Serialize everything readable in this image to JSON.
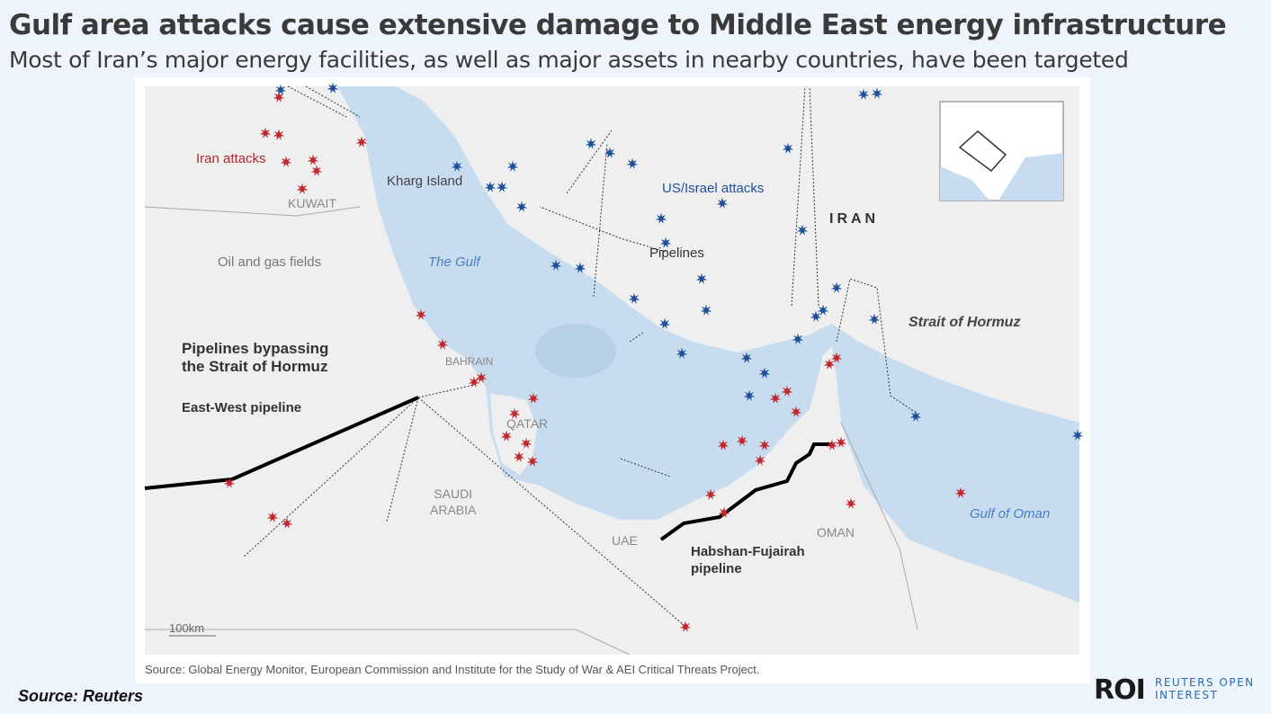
{
  "title": "Gulf area attacks cause extensive damage to Middle East energy infrastructure",
  "subtitle": "Most of Iran’s major energy facilities, as well as major assets in nearby countries, have been targeted",
  "map": {
    "labels": {
      "iran_attacks": "Iran attacks",
      "us_israel_attacks": "US/Israel attacks",
      "kuwait": "KUWAIT",
      "kharg": "Kharg Island",
      "iran": "IRAN",
      "oil_gas": "Oil and gas fields",
      "the_gulf": "The Gulf",
      "pipelines": "Pipelines",
      "strait": "Strait of Hormuz",
      "bypass_line1": "Pipelines bypassing",
      "bypass_line2": "the Strait of Hormuz",
      "bahrain": "BAHRAIN",
      "east_west": "East-West pipeline",
      "qatar": "QATAR",
      "saudi1": "SAUDI",
      "saudi2": "ARABIA",
      "uae": "UAE",
      "oman": "OMAN",
      "habshan1": "Habshan-Fujairah",
      "habshan2": "pipeline",
      "gulf_oman": "Gulf of Oman",
      "scale": "100km"
    },
    "colors": {
      "water": "#c8dcf0",
      "land": "#efefef",
      "iran_attack": "#c0282d",
      "us_israel_attack": "#1f4f99",
      "pipeline": "#000000"
    },
    "source": "Source: Global Energy Monitor, European Commission and Institute for the Study of War & AEI Critical Threats Project."
  },
  "source": "Source: Reuters",
  "logo": {
    "mark": "ROI",
    "line1": "REUTERS OPEN",
    "line2": "INTEREST"
  }
}
